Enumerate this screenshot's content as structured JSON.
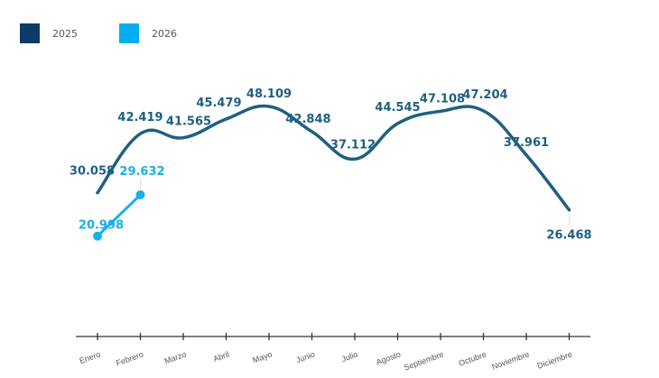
{
  "chart_data": {
    "type": "line",
    "title": "",
    "xlabel": "",
    "ylabel": "",
    "categories": [
      "Enero",
      "Febrero",
      "Marzo",
      "Abril",
      "Mayo",
      "Junio",
      "Julio",
      "Agosto",
      "Septiembre",
      "Octubre",
      "Noviembre",
      "Diciembre"
    ],
    "ylim": [
      0,
      50
    ],
    "grid": false,
    "legend_position": "top-left",
    "series": [
      {
        "name": "2025",
        "color": "#1f5f82",
        "legend_color": "#0d3a66",
        "values": [
          30.058,
          42.419,
          41.565,
          45.479,
          48.109,
          42.848,
          37.112,
          44.545,
          47.108,
          47.204,
          37.961,
          26.468
        ],
        "labels": [
          "30.058",
          "42.419",
          "41.565",
          "45.479",
          "48.109",
          "42.848",
          "37.112",
          "44.545",
          "47.108",
          "47.204",
          "37.961",
          "26.468"
        ]
      },
      {
        "name": "2026",
        "color": "#1ab0e8",
        "legend_color": "#00aeef",
        "values": [
          20.998,
          29.632
        ],
        "labels": [
          "20.998",
          "29.632"
        ]
      }
    ]
  },
  "legend": [
    {
      "label": "2025",
      "color": "#0d3a66"
    },
    {
      "label": "2026",
      "color": "#00aeef"
    }
  ]
}
